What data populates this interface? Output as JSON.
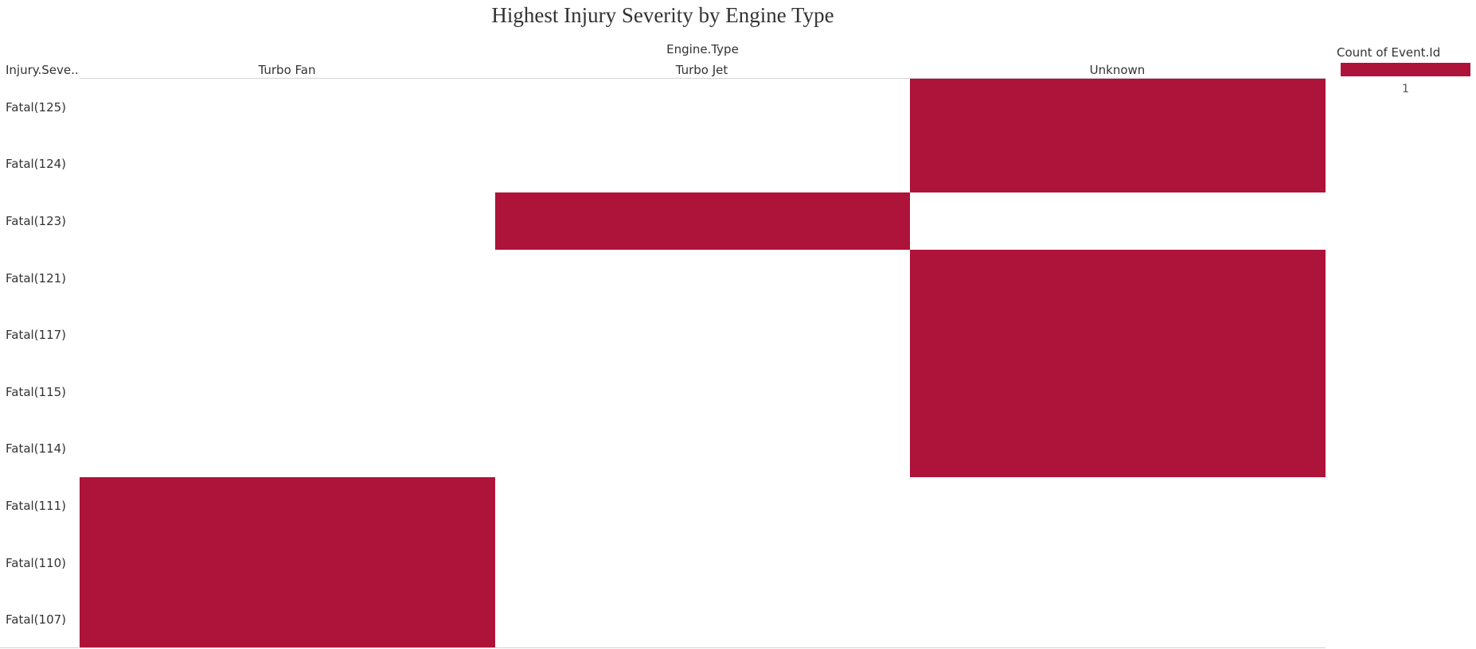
{
  "chart_data": {
    "type": "heatmap",
    "title": "Highest Injury Severity by Engine Type",
    "column_field": "Engine.Type",
    "row_field": "Injury.Seve..",
    "columns": [
      "Turbo Fan",
      "Turbo Jet",
      "Unknown"
    ],
    "rows": [
      "Fatal(125)",
      "Fatal(124)",
      "Fatal(123)",
      "Fatal(121)",
      "Fatal(117)",
      "Fatal(115)",
      "Fatal(114)",
      "Fatal(111)",
      "Fatal(110)",
      "Fatal(107)"
    ],
    "cells": [
      {
        "row": "Fatal(125)",
        "column": "Unknown",
        "value": 1
      },
      {
        "row": "Fatal(124)",
        "column": "Unknown",
        "value": 1
      },
      {
        "row": "Fatal(123)",
        "column": "Turbo Jet",
        "value": 1
      },
      {
        "row": "Fatal(121)",
        "column": "Unknown",
        "value": 1
      },
      {
        "row": "Fatal(117)",
        "column": "Unknown",
        "value": 1
      },
      {
        "row": "Fatal(115)",
        "column": "Unknown",
        "value": 1
      },
      {
        "row": "Fatal(114)",
        "column": "Unknown",
        "value": 1
      },
      {
        "row": "Fatal(111)",
        "column": "Turbo Fan",
        "value": 1
      },
      {
        "row": "Fatal(110)",
        "column": "Turbo Fan",
        "value": 1
      },
      {
        "row": "Fatal(107)",
        "column": "Turbo Fan",
        "value": 1
      }
    ],
    "legend": {
      "title": "Count of Event.Id",
      "value_label": "1",
      "placement": "right"
    },
    "fill_color": "#ae1339",
    "grid": false
  }
}
